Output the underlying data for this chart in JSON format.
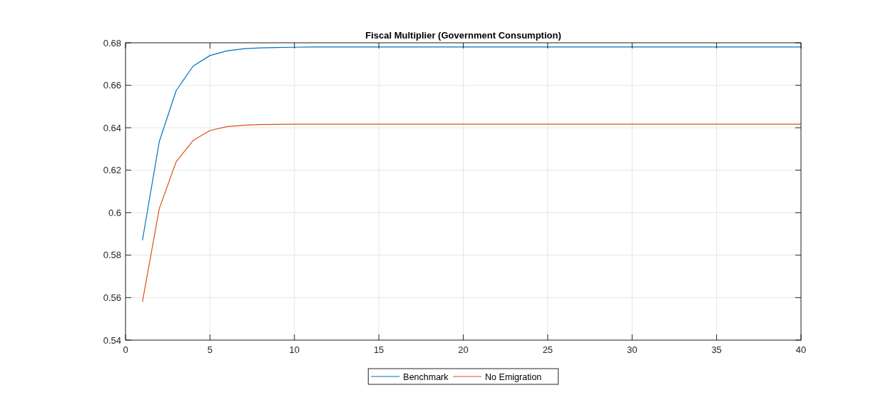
{
  "chart_data": {
    "type": "line",
    "title": "Fiscal Multiplier (Government Consumption)",
    "x": [
      1,
      2,
      3,
      4,
      5,
      6,
      7,
      8,
      9,
      10,
      11,
      12,
      13,
      14,
      15,
      16,
      17,
      18,
      19,
      20,
      21,
      22,
      23,
      24,
      25,
      26,
      27,
      28,
      29,
      30,
      31,
      32,
      33,
      34,
      35,
      36,
      37,
      38,
      39,
      40
    ],
    "series": [
      {
        "name": "Benchmark",
        "color": "#0072bd",
        "values": [
          0.587,
          0.6335,
          0.6575,
          0.669,
          0.674,
          0.6762,
          0.6772,
          0.6776,
          0.6778,
          0.6779,
          0.678,
          0.678,
          0.678,
          0.678,
          0.678,
          0.678,
          0.678,
          0.678,
          0.678,
          0.678,
          0.678,
          0.678,
          0.678,
          0.678,
          0.678,
          0.678,
          0.678,
          0.678,
          0.678,
          0.678,
          0.678,
          0.678,
          0.678,
          0.678,
          0.678,
          0.678,
          0.678,
          0.678,
          0.678,
          0.678
        ]
      },
      {
        "name": "No Emigration",
        "color": "#d95319",
        "values": [
          0.558,
          0.602,
          0.624,
          0.634,
          0.6387,
          0.6405,
          0.6412,
          0.6415,
          0.6416,
          0.6417,
          0.6417,
          0.6417,
          0.6417,
          0.6417,
          0.6417,
          0.6417,
          0.6417,
          0.6417,
          0.6417,
          0.6417,
          0.6417,
          0.6417,
          0.6417,
          0.6417,
          0.6417,
          0.6417,
          0.6417,
          0.6417,
          0.6417,
          0.6417,
          0.6417,
          0.6417,
          0.6417,
          0.6417,
          0.6417,
          0.6417,
          0.6417,
          0.6417,
          0.6417,
          0.6417
        ]
      }
    ],
    "xlim": [
      0,
      40
    ],
    "xticks": [
      0,
      5,
      10,
      15,
      20,
      25,
      30,
      35,
      40
    ],
    "ylim": [
      0.54,
      0.68
    ],
    "yticks": [
      {
        "value": 0.54,
        "label": "0.54"
      },
      {
        "value": 0.56,
        "label": "0.56"
      },
      {
        "value": 0.58,
        "label": "0.58"
      },
      0.6,
      {
        "value": 0.62,
        "label": "0.62"
      },
      {
        "value": 0.64,
        "label": "0.64"
      },
      {
        "value": 0.66,
        "label": "0.66"
      },
      {
        "value": 0.68,
        "label": "0.68"
      }
    ],
    "grid": true,
    "legend": "bottom",
    "line_style": "solid"
  }
}
